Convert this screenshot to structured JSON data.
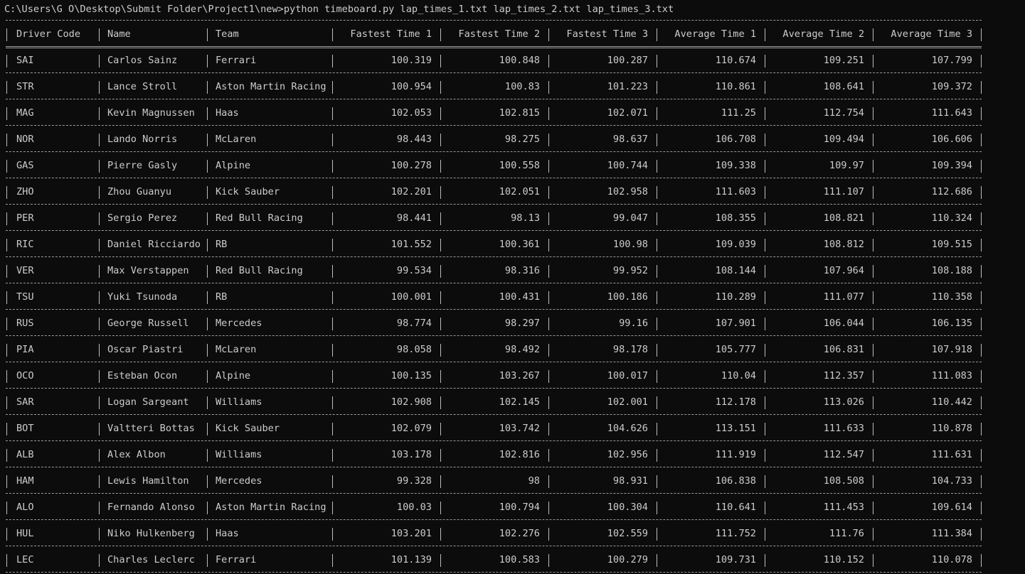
{
  "command": "C:\\Users\\G O\\Desktop\\Submit Folder\\Project1\\new>python timeboard.py lap_times_1.txt lap_times_2.txt lap_times_3.txt",
  "headers": [
    "Driver Code",
    "Name",
    "Team",
    "Fastest Time 1",
    "Fastest Time 2",
    "Fastest Time 3",
    "Average Time 1",
    "Average Time 2",
    "Average Time 3"
  ],
  "rows": [
    [
      "SAI",
      "Carlos Sainz",
      "Ferrari",
      "100.319",
      "100.848",
      "100.287",
      "110.674",
      "109.251",
      "107.799"
    ],
    [
      "STR",
      "Lance Stroll",
      "Aston Martin Racing",
      "100.954",
      "100.83",
      "101.223",
      "110.861",
      "108.641",
      "109.372"
    ],
    [
      "MAG",
      "Kevin Magnussen",
      "Haas",
      "102.053",
      "102.815",
      "102.071",
      "111.25",
      "112.754",
      "111.643"
    ],
    [
      "NOR",
      "Lando Norris",
      "McLaren",
      "98.443",
      "98.275",
      "98.637",
      "106.708",
      "109.494",
      "106.606"
    ],
    [
      "GAS",
      "Pierre Gasly",
      "Alpine",
      "100.278",
      "100.558",
      "100.744",
      "109.338",
      "109.97",
      "109.394"
    ],
    [
      "ZHO",
      "Zhou Guanyu",
      "Kick Sauber",
      "102.201",
      "102.051",
      "102.958",
      "111.603",
      "111.107",
      "112.686"
    ],
    [
      "PER",
      "Sergio Perez",
      "Red Bull Racing",
      "98.441",
      "98.13",
      "99.047",
      "108.355",
      "108.821",
      "110.324"
    ],
    [
      "RIC",
      "Daniel Ricciardo",
      "RB",
      "101.552",
      "100.361",
      "100.98",
      "109.039",
      "108.812",
      "109.515"
    ],
    [
      "VER",
      "Max Verstappen",
      "Red Bull Racing",
      "99.534",
      "98.316",
      "99.952",
      "108.144",
      "107.964",
      "108.188"
    ],
    [
      "TSU",
      "Yuki Tsunoda",
      "RB",
      "100.001",
      "100.431",
      "100.186",
      "110.289",
      "111.077",
      "110.358"
    ],
    [
      "RUS",
      "George Russell",
      "Mercedes",
      "98.774",
      "98.297",
      "99.16",
      "107.901",
      "106.044",
      "106.135"
    ],
    [
      "PIA",
      "Oscar Piastri",
      "McLaren",
      "98.058",
      "98.492",
      "98.178",
      "105.777",
      "106.831",
      "107.918"
    ],
    [
      "OCO",
      "Esteban Ocon",
      "Alpine",
      "100.135",
      "103.267",
      "100.017",
      "110.04",
      "112.357",
      "111.083"
    ],
    [
      "SAR",
      "Logan Sargeant",
      "Williams",
      "102.908",
      "102.145",
      "102.001",
      "112.178",
      "113.026",
      "110.442"
    ],
    [
      "BOT",
      "Valtteri Bottas",
      "Kick Sauber",
      "102.079",
      "103.742",
      "104.626",
      "113.151",
      "111.633",
      "110.878"
    ],
    [
      "ALB",
      "Alex Albon",
      "Williams",
      "103.178",
      "102.816",
      "102.956",
      "111.919",
      "112.547",
      "111.631"
    ],
    [
      "HAM",
      "Lewis Hamilton",
      "Mercedes",
      "99.328",
      "98",
      "98.931",
      "106.838",
      "108.508",
      "104.733"
    ],
    [
      "ALO",
      "Fernando Alonso",
      "Aston Martin Racing",
      "100.03",
      "100.794",
      "100.304",
      "110.641",
      "111.453",
      "109.614"
    ],
    [
      "HUL",
      "Niko Hulkenberg",
      "Haas",
      "103.201",
      "102.276",
      "102.559",
      "111.752",
      "111.76",
      "111.384"
    ],
    [
      "LEC",
      "Charles Leclerc",
      "Ferrari",
      "101.139",
      "100.583",
      "100.279",
      "109.731",
      "110.152",
      "110.078"
    ]
  ],
  "colors": {
    "background": "#0c0c0c",
    "text": "#cccccc",
    "border": "#9a9a9a"
  }
}
